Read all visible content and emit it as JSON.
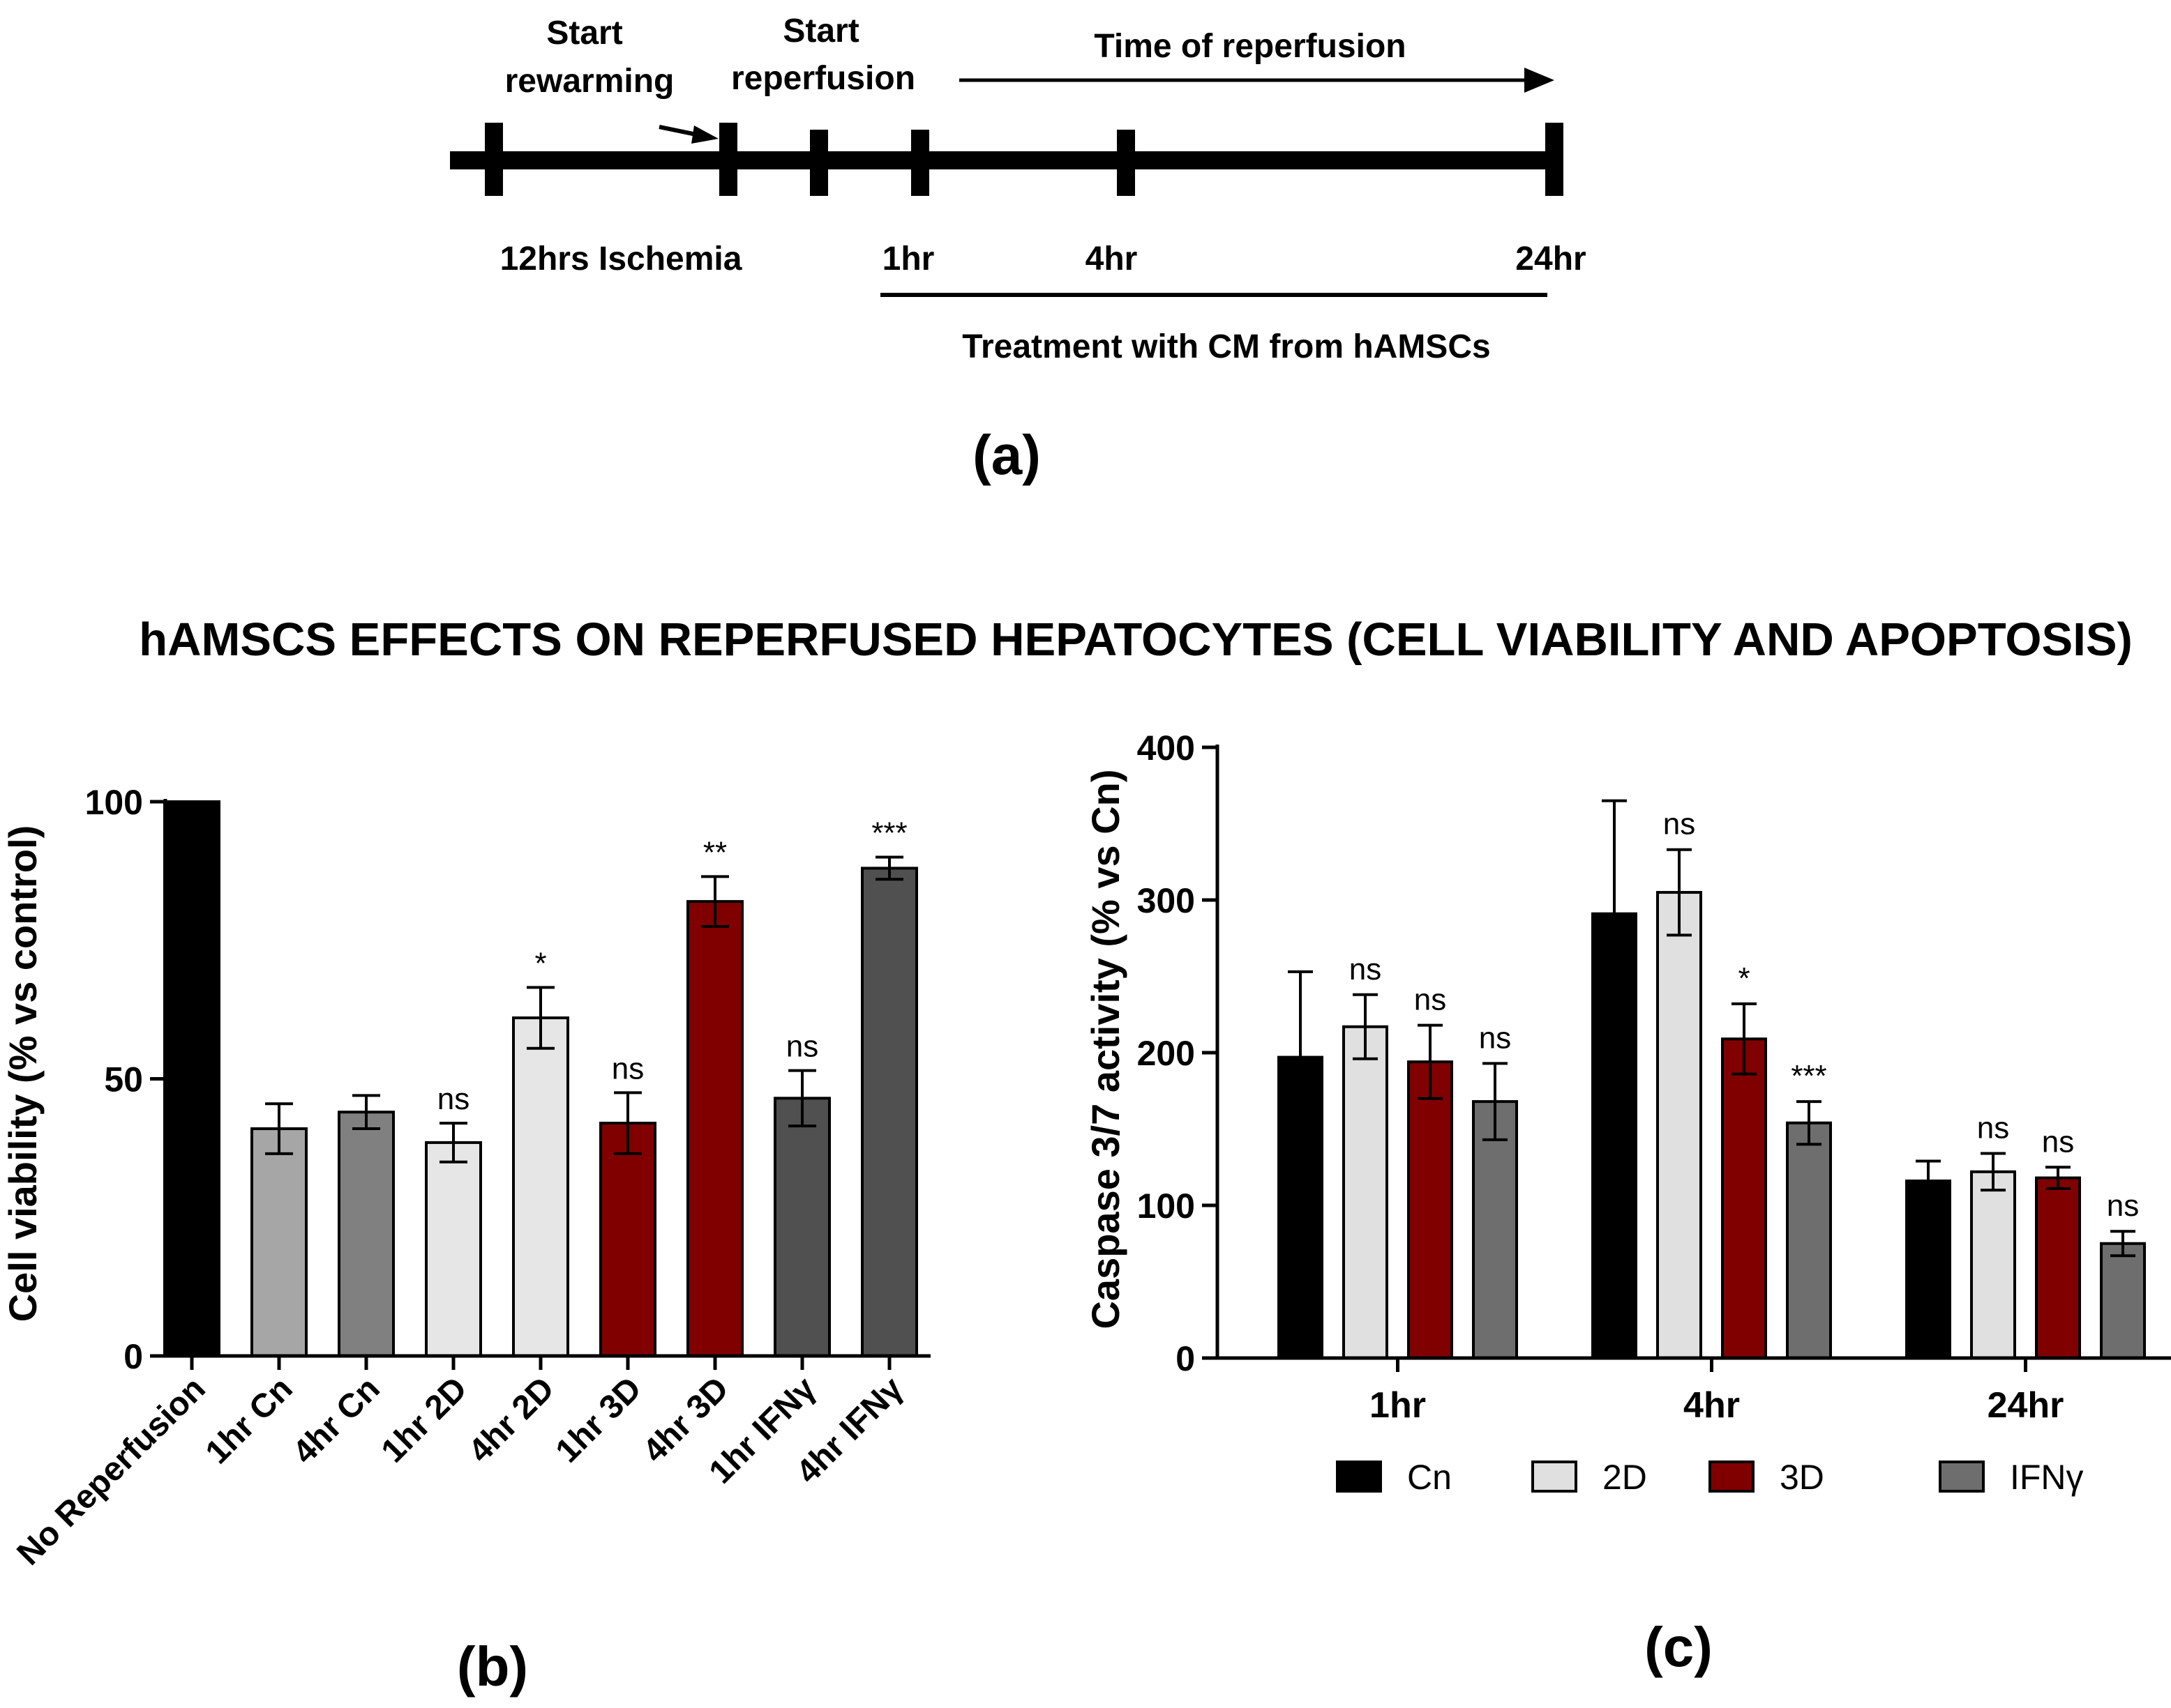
{
  "timeline": {
    "start_rewarming": [
      "Start",
      "rewarming"
    ],
    "start_reperfusion": [
      "Start",
      "reperfusion"
    ],
    "time_of_reperfusion": "Time of reperfusion",
    "ischemia": "12hrs Ischemia",
    "t1": "1hr",
    "t4": "4hr",
    "t24": "24hr",
    "treatment": "Treatment with CM from hAMSCs",
    "panel_label": "(a)"
  },
  "main_title": "hAMSCS EFFECTS ON REPERFUSED HEPATOCYTES (CELL VIABILITY AND APOPTOSIS)",
  "colors": {
    "black": "#000000",
    "light_gray": "#e6e6e6",
    "mid_gray": "#a6a6a6",
    "gray": "#808080",
    "dark_gray": "#505050",
    "red": "#800000"
  },
  "chart_data": [
    {
      "type": "bar",
      "panel_label": "(b)",
      "ylabel": "Cell viability (% vs control)",
      "ylim": [
        0,
        100
      ],
      "yticks": [
        0,
        50,
        100
      ],
      "categories": [
        "No Reperfusion",
        "1hr Cn",
        "4hr Cn",
        "1hr 2D",
        "4hr 2D",
        "1hr 3D",
        "4hr 3D",
        "1hr IFNγ",
        "4hr IFNγ"
      ],
      "values": [
        100,
        41,
        44,
        38.5,
        61,
        42,
        82,
        46.5,
        88
      ],
      "errors": [
        0,
        4.5,
        3,
        3.5,
        5.5,
        5.5,
        4.5,
        5,
        2
      ],
      "significance": [
        "",
        "",
        "",
        "ns",
        "*",
        "ns",
        "**",
        "ns",
        "***"
      ],
      "bar_colors": [
        "#000000",
        "#a6a6a6",
        "#808080",
        "#e6e6e6",
        "#e6e6e6",
        "#800000",
        "#800000",
        "#505050",
        "#505050"
      ]
    },
    {
      "type": "bar",
      "panel_label": "(c)",
      "ylabel": "Caspase 3/7 activity (% vs Cn)",
      "ylim": [
        0,
        400
      ],
      "yticks": [
        0,
        100,
        200,
        300,
        400
      ],
      "categories": [
        "1hr",
        "4hr",
        "24hr"
      ],
      "series": [
        {
          "name": "Cn",
          "color": "#000000",
          "values": [
            197,
            291,
            116
          ],
          "errors": [
            56,
            74,
            13
          ],
          "significance": [
            "",
            "",
            ""
          ]
        },
        {
          "name": "2D",
          "color": "#e0e0e0",
          "values": [
            217,
            305,
            122
          ],
          "errors": [
            21,
            28,
            12
          ],
          "significance": [
            "ns",
            "ns",
            "ns"
          ]
        },
        {
          "name": "3D",
          "color": "#800000",
          "values": [
            194,
            209,
            118
          ],
          "errors": [
            24,
            23,
            7
          ],
          "significance": [
            "ns",
            "*",
            "ns"
          ]
        },
        {
          "name": "IFNγ",
          "color": "#6e6e6e",
          "values": [
            168,
            154,
            75
          ],
          "errors": [
            25,
            14,
            8
          ],
          "significance": [
            "ns",
            "***",
            "ns"
          ]
        }
      ],
      "legend_position": "bottom"
    }
  ]
}
